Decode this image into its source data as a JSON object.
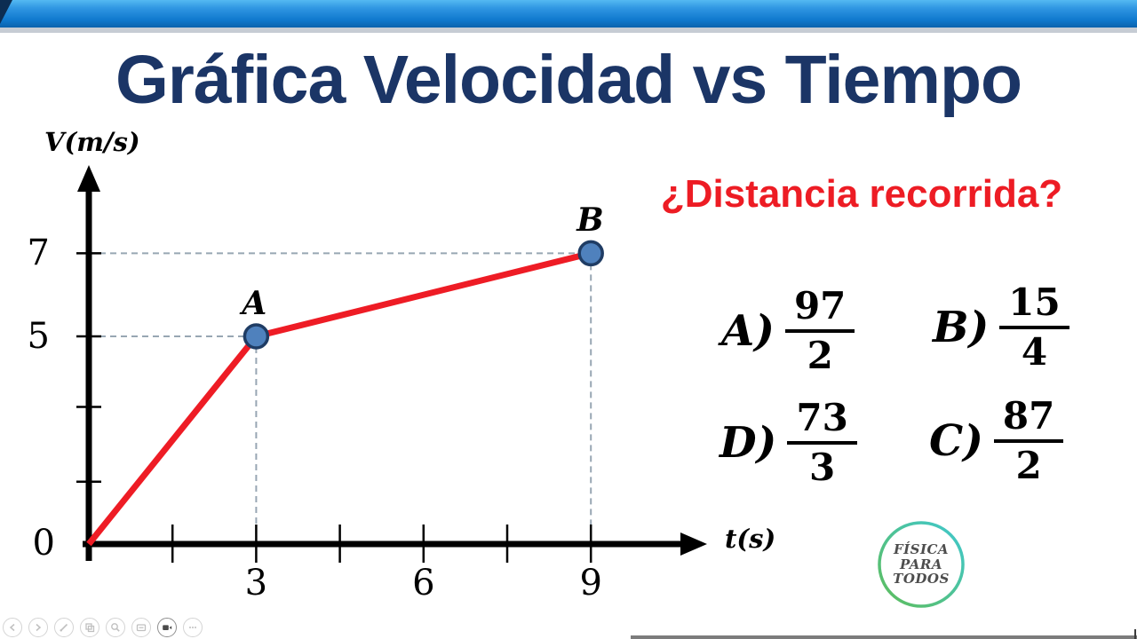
{
  "window": {
    "top_bar_gradient_top": "#54b9f2",
    "top_bar_gradient_bottom": "#0a62ad",
    "under_bar_strip_color": "#c6ccd4"
  },
  "title": {
    "text": "Gráfica Velocidad vs Tiempo",
    "color": "#1b3566"
  },
  "question": {
    "text": "¿Distancia recorrida?",
    "color": "#ed1c24"
  },
  "chart_data": {
    "type": "line",
    "title": "",
    "xlabel": "t(s)",
    "ylabel": "V(m/s)",
    "origin_label": "0",
    "x": [
      0,
      3,
      9
    ],
    "y": [
      0,
      5,
      7
    ],
    "points": [
      {
        "label": "A",
        "t": 3,
        "v": 5
      },
      {
        "label": "B",
        "t": 9,
        "v": 7
      }
    ],
    "x_ticks": [
      {
        "t": 1.5,
        "label": ""
      },
      {
        "t": 3,
        "label": "3"
      },
      {
        "t": 4.5,
        "label": ""
      },
      {
        "t": 6,
        "label": "6"
      },
      {
        "t": 7.5,
        "label": ""
      },
      {
        "t": 9,
        "label": "9"
      }
    ],
    "y_ticks": [
      {
        "v": 7,
        "label": "7"
      },
      {
        "v": 5,
        "label": "5"
      },
      {
        "v": 3.3,
        "label": ""
      },
      {
        "v": 1.5,
        "label": ""
      }
    ],
    "xlim": [
      0,
      10.8
    ],
    "ylim": [
      0,
      9
    ],
    "grid": false,
    "line_color": "#ee1c25",
    "point_fill": "#4f81bd",
    "point_border": "#1f3c64",
    "guide_color": "#98a6b3",
    "axis_color": "#000000"
  },
  "options": [
    {
      "letter": "A)",
      "numerator": "97",
      "denominator": "2"
    },
    {
      "letter": "B)",
      "numerator": "15",
      "denominator": "4"
    },
    {
      "letter": "D)",
      "numerator": "73",
      "denominator": "3"
    },
    {
      "letter": "C)",
      "numerator": "87",
      "denominator": "2"
    }
  ],
  "logo": {
    "lines": [
      "FÍSICA",
      "PARA",
      "TODOS"
    ],
    "text_color": "#4d4d4d",
    "ring_color_start": "#3fc8cf",
    "ring_color_end": "#5ebd5a"
  },
  "toolbar": {
    "icons": [
      "previous-slide",
      "next-slide",
      "pen",
      "see-all-slides",
      "zoom",
      "captions",
      "camera",
      "more-options"
    ]
  },
  "bottom_bar_color": "#7c7c7c"
}
